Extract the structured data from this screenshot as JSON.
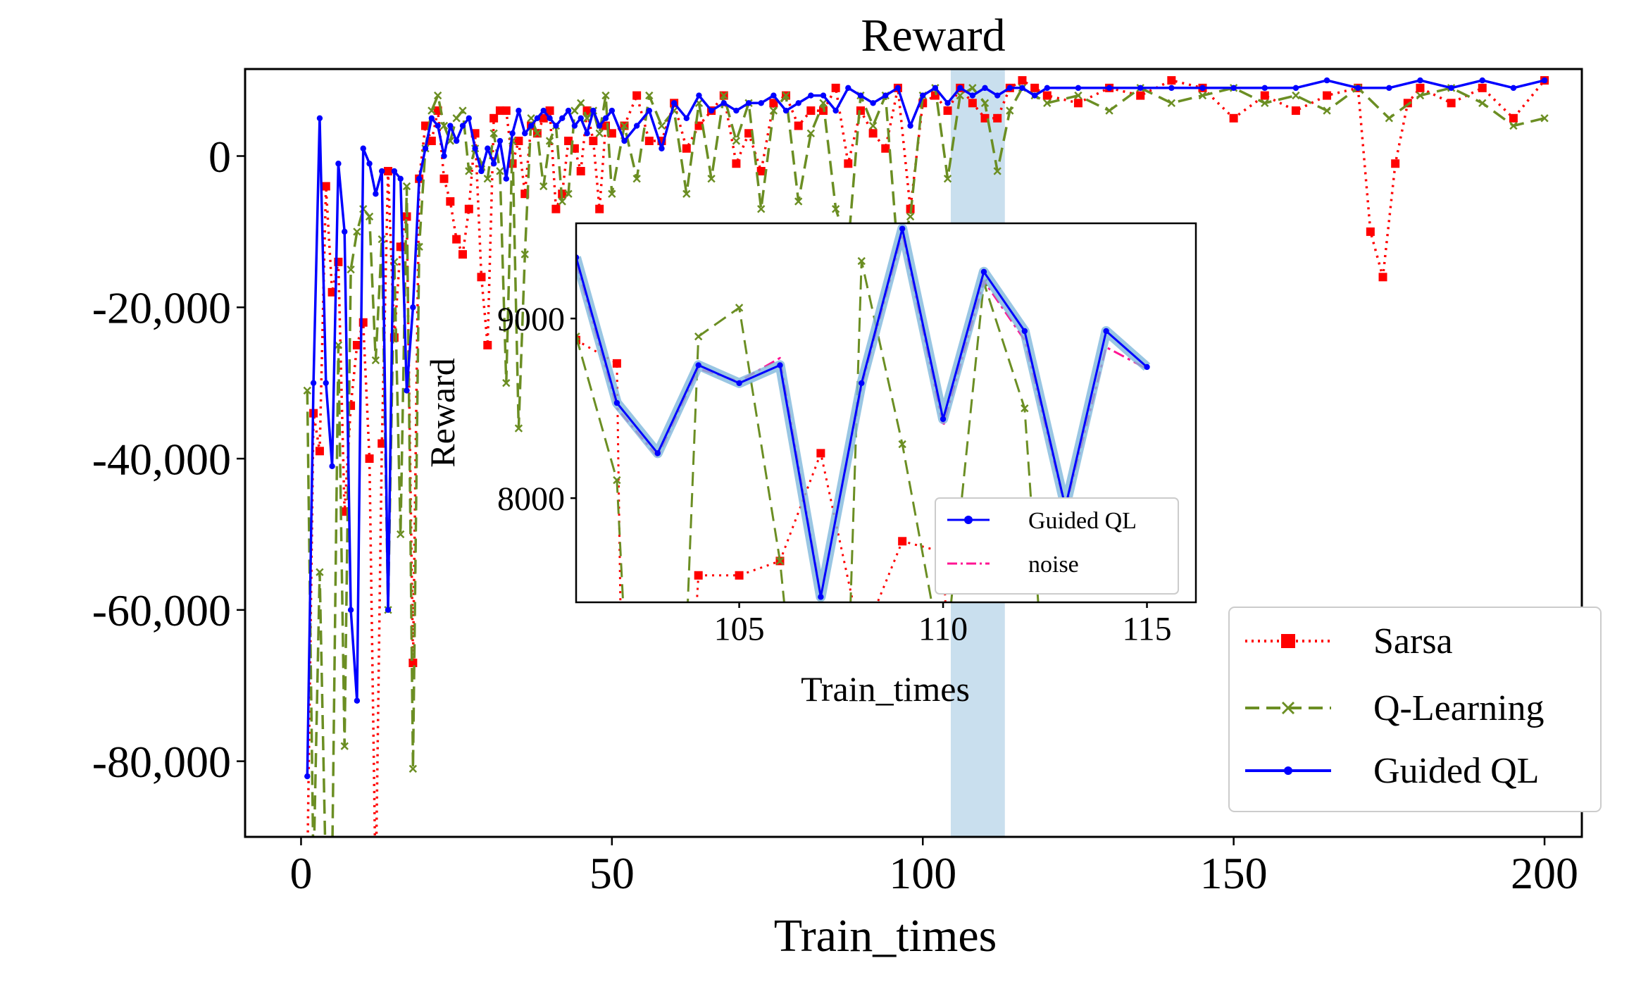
{
  "chart_data": [
    {
      "id": "main",
      "type": "line",
      "title": "Reward",
      "xlabel": "Train_times",
      "ylabel": "",
      "xlim": [
        -9,
        206
      ],
      "ylim": [
        -90000,
        11500
      ],
      "xticks": [
        0,
        50,
        100,
        150,
        200
      ],
      "xtick_labels": [
        "0",
        "50",
        "100",
        "150",
        "200"
      ],
      "yticks": [
        0,
        -20000,
        -40000,
        -60000,
        -80000
      ],
      "ytick_labels": [
        "0",
        "-20,000",
        "-40,000",
        "-60,000",
        "-80,000"
      ],
      "highlight_band": [
        104.5,
        113.2
      ],
      "legend_position": "lower-right",
      "legend": [
        "Sarsa",
        "Q-Learning",
        "Guided QL"
      ],
      "series": [
        {
          "name": "Sarsa",
          "color": "#ff0000",
          "style": "dotted",
          "marker": "square",
          "x": [
            1,
            2,
            3,
            4,
            5,
            6,
            7,
            8,
            9,
            10,
            11,
            12,
            13,
            14,
            15,
            16,
            17,
            18,
            19,
            20,
            21,
            22,
            23,
            24,
            25,
            26,
            27,
            28,
            29,
            30,
            31,
            32,
            33,
            34,
            35,
            36,
            37,
            38,
            39,
            40,
            41,
            42,
            43,
            44,
            45,
            46,
            47,
            48,
            49,
            50,
            52,
            54,
            56,
            58,
            60,
            62,
            64,
            66,
            68,
            70,
            72,
            74,
            76,
            78,
            80,
            82,
            84,
            86,
            88,
            90,
            92,
            94,
            96,
            98,
            100,
            102,
            104,
            106,
            108,
            110,
            112,
            114,
            116,
            118,
            120,
            125,
            130,
            135,
            140,
            145,
            150,
            155,
            160,
            165,
            170,
            172,
            174,
            176,
            178,
            180,
            185,
            190,
            195,
            200
          ],
          "values": [
            -95000,
            -34000,
            -39000,
            -4000,
            -18000,
            -14000,
            -47000,
            -33000,
            -25000,
            -22000,
            -40000,
            -97000,
            -38000,
            -2000,
            -24000,
            -12000,
            -8000,
            -67000,
            -3000,
            4000,
            2000,
            6000,
            -3000,
            -6000,
            -11000,
            -13000,
            -7000,
            3000,
            -16000,
            -25000,
            5000,
            6000,
            6000,
            -1000,
            2000,
            -5000,
            4000,
            3000,
            5000,
            6000,
            -7000,
            -5000,
            2000,
            1000,
            -2000,
            6000,
            2000,
            -7000,
            4000,
            3000,
            4000,
            8000,
            2000,
            2000,
            7000,
            1000,
            4000,
            6000,
            8000,
            -1000,
            3000,
            -2000,
            7000,
            8000,
            4000,
            6000,
            6000,
            9000,
            -1000,
            6000,
            3000,
            1000,
            9000,
            -7000,
            7000,
            8000,
            6000,
            9000,
            7000,
            5000,
            5000,
            9000,
            10000,
            9000,
            8000,
            7000,
            9000,
            8000,
            10000,
            9000,
            5000,
            8000,
            6000,
            8000,
            9000,
            -10000,
            -16000,
            -1000,
            7000,
            9000,
            7000,
            9000,
            5000,
            10000
          ]
        },
        {
          "name": "Q-Learning",
          "color": "#6b8e23",
          "style": "dashed",
          "marker": "x",
          "x": [
            1,
            2,
            3,
            4,
            5,
            6,
            7,
            8,
            9,
            10,
            11,
            12,
            13,
            14,
            15,
            16,
            17,
            18,
            19,
            20,
            21,
            22,
            23,
            24,
            25,
            26,
            27,
            28,
            29,
            30,
            31,
            32,
            33,
            34,
            35,
            36,
            37,
            38,
            39,
            40,
            41,
            42,
            43,
            44,
            45,
            46,
            47,
            48,
            49,
            50,
            52,
            54,
            56,
            58,
            60,
            62,
            64,
            66,
            68,
            70,
            72,
            74,
            76,
            78,
            80,
            82,
            84,
            86,
            88,
            90,
            92,
            94,
            96,
            98,
            100,
            102,
            104,
            106,
            108,
            110,
            112,
            114,
            116,
            118,
            120,
            125,
            130,
            135,
            140,
            145,
            150,
            155,
            160,
            165,
            170,
            175,
            180,
            185,
            190,
            195,
            200
          ],
          "values": [
            -31000,
            -95000,
            -55000,
            -96000,
            -94000,
            -25000,
            -78000,
            -15000,
            -10000,
            -7000,
            -8000,
            -27000,
            -11000,
            -60000,
            -14000,
            -50000,
            -4000,
            -81000,
            -12000,
            1000,
            6000,
            8000,
            4000,
            2000,
            5000,
            6000,
            -2000,
            1000,
            -1000,
            -3000,
            3000,
            -2000,
            -30000,
            2000,
            -36000,
            -13000,
            5000,
            3000,
            -4000,
            2000,
            4000,
            -6000,
            -5000,
            6000,
            7000,
            5000,
            6000,
            3000,
            8000,
            -5000,
            4000,
            -3000,
            8000,
            4000,
            6000,
            -5000,
            7000,
            -3000,
            8000,
            2000,
            7000,
            -7000,
            6000,
            8000,
            -6000,
            3000,
            7000,
            -7000,
            -12000,
            8000,
            4000,
            8000,
            -13000,
            -8000,
            8000,
            9000,
            -3000,
            8000,
            9000,
            7000,
            -2000,
            6000,
            9000,
            8000,
            7000,
            8000,
            6000,
            9000,
            7000,
            8000,
            9000,
            7000,
            8000,
            6000,
            9000,
            5000,
            8000,
            9000,
            7000,
            4000,
            5000
          ]
        },
        {
          "name": "Guided QL",
          "color": "#0000ff",
          "style": "solid",
          "marker": "dot",
          "x": [
            1,
            2,
            3,
            4,
            5,
            6,
            7,
            8,
            9,
            10,
            11,
            12,
            13,
            14,
            15,
            16,
            17,
            18,
            19,
            20,
            21,
            22,
            23,
            24,
            25,
            26,
            27,
            28,
            29,
            30,
            31,
            32,
            33,
            34,
            35,
            36,
            37,
            38,
            39,
            40,
            41,
            42,
            43,
            44,
            45,
            46,
            47,
            48,
            49,
            50,
            52,
            54,
            56,
            58,
            60,
            62,
            64,
            66,
            68,
            70,
            72,
            74,
            76,
            78,
            80,
            82,
            84,
            86,
            88,
            90,
            92,
            94,
            96,
            98,
            100,
            102,
            104,
            106,
            108,
            110,
            112,
            114,
            116,
            118,
            120,
            125,
            130,
            135,
            140,
            145,
            150,
            155,
            160,
            165,
            170,
            175,
            180,
            185,
            190,
            195,
            200
          ],
          "values": [
            -82000,
            -30000,
            5000,
            -30000,
            -41000,
            -1000,
            -10000,
            -60000,
            -72000,
            1000,
            -1000,
            -5000,
            -2000,
            -60000,
            -2000,
            -3000,
            -31000,
            -20000,
            -3000,
            1000,
            5000,
            4000,
            0,
            4000,
            2000,
            4000,
            5000,
            1000,
            -2000,
            1000,
            -1000,
            2000,
            -3000,
            3000,
            6000,
            3000,
            4000,
            5000,
            6000,
            5000,
            4000,
            5000,
            6000,
            4000,
            5000,
            3000,
            6000,
            4000,
            5000,
            6000,
            2000,
            4000,
            6000,
            1000,
            7000,
            5000,
            8000,
            6000,
            7000,
            6000,
            7000,
            7000,
            8000,
            6000,
            7000,
            8000,
            8000,
            6000,
            9000,
            8000,
            7000,
            8000,
            9000,
            4000,
            8000,
            9000,
            7000,
            9000,
            8000,
            9000,
            8000,
            9000,
            9000,
            8000,
            9000,
            9000,
            9000,
            9000,
            9000,
            9000,
            9000,
            9000,
            9000,
            10000,
            9000,
            9000,
            10000,
            9000,
            10000,
            9000,
            10000
          ]
        }
      ]
    },
    {
      "id": "inset",
      "type": "line",
      "title": "",
      "xlabel": "Train_times",
      "ylabel": "Reward",
      "xlim": [
        101,
        116.2
      ],
      "ylim": [
        7420,
        9530
      ],
      "xticks": [
        105,
        110,
        115
      ],
      "xtick_labels": [
        "105",
        "110",
        "115"
      ],
      "yticks": [
        8000,
        9000
      ],
      "ytick_labels": [
        "8000",
        "9000"
      ],
      "legend_position": "lower-right",
      "legend": [
        "Guided QL",
        "noise"
      ],
      "series": [
        {
          "name": "Sarsa",
          "color": "#ff0000",
          "style": "dotted",
          "marker": "square",
          "x": [
            101,
            102,
            102.1,
            103.9,
            104,
            105,
            106,
            107,
            108,
            109,
            110,
            110.1
          ],
          "values": [
            8880,
            8750,
            7200,
            7200,
            7570,
            7570,
            7650,
            8250,
            7200,
            7760,
            7700,
            7200
          ]
        },
        {
          "name": "Q-Learning",
          "color": "#6b8e23",
          "style": "dashed",
          "marker": "x",
          "x": [
            101,
            102,
            102.2,
            103.7,
            104,
            105,
            106,
            106.2,
            107.7,
            108,
            109,
            109.9,
            110.1,
            111,
            112,
            112.4
          ],
          "values": [
            8900,
            8100,
            7200,
            7200,
            8900,
            9060,
            7650,
            7200,
            7200,
            9320,
            8300,
            7200,
            7200,
            9200,
            8500,
            7200
          ]
        },
        {
          "name": "noise",
          "color": "#ff1493",
          "style": "dashdot",
          "marker": "none",
          "x": [
            101,
            102,
            103,
            104,
            105,
            106,
            107,
            108,
            109,
            110,
            111,
            112,
            113,
            114,
            115
          ],
          "values": [
            9310,
            8500,
            8230,
            8720,
            8650,
            8780,
            7460,
            8620,
            9470,
            8400,
            9210,
            8880,
            7940,
            8840,
            8720
          ]
        },
        {
          "name": "Guided QL",
          "color": "#0000ff",
          "style": "solid",
          "marker": "dot",
          "x": [
            101,
            102,
            103,
            104,
            105,
            106,
            107,
            108,
            109,
            110,
            111,
            112,
            113,
            114,
            115
          ],
          "values": [
            9340,
            8530,
            8250,
            8740,
            8640,
            8740,
            7450,
            8640,
            9500,
            8440,
            9260,
            8930,
            7950,
            8930,
            8730
          ]
        }
      ]
    }
  ]
}
